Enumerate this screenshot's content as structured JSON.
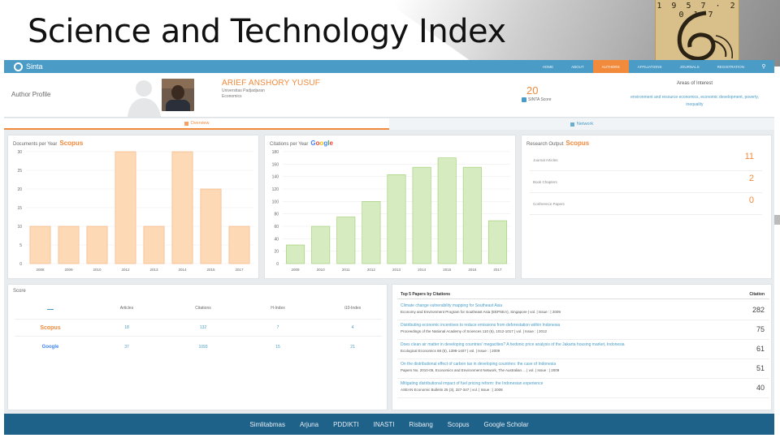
{
  "slide": {
    "title": "Science and Technology Index",
    "logo_years": "1 9 5 7 · 2 0 1 7"
  },
  "app": {
    "brand": "Sinta",
    "nav": [
      {
        "label": "HOME",
        "active": false
      },
      {
        "label": "ABOUT",
        "active": false
      },
      {
        "label": "AUTHORS",
        "active": true
      },
      {
        "label": "AFFILIATIONS",
        "active": false
      },
      {
        "label": "JOURNALS",
        "active": false
      },
      {
        "label": "REGISTRATION",
        "active": false
      }
    ],
    "search_icon": "search-icon"
  },
  "profile": {
    "label": "Author Profile",
    "name": "ARIEF ANSHORY YUSUF",
    "university": "Universitas Padjadjaran",
    "faculty": "Economics",
    "score": "20",
    "score_label": "SINTA Score",
    "interest_title": "Areas of Interest",
    "interests": "environment and resource economics, economic development, poverty, inequality"
  },
  "tabs": [
    {
      "label": "Overview",
      "active": true
    },
    {
      "label": "Network",
      "active": false
    }
  ],
  "scopus_docs": {
    "title": "Documents per Year",
    "brand": "Scopus",
    "chart_data": {
      "type": "bar",
      "categories": [
        "2008",
        "2009",
        "2010",
        "2012",
        "2013",
        "2014",
        "2015",
        "2017"
      ],
      "values": [
        10,
        10,
        10,
        30,
        10,
        30,
        20,
        10
      ],
      "ylim": [
        0,
        30
      ],
      "yticks": [
        0,
        5,
        10,
        15,
        20,
        25,
        30
      ],
      "color": "#fdd9b5",
      "stroke": "#f4b07a"
    }
  },
  "google_cites": {
    "title": "Citations per Year",
    "brand": "Google",
    "chart_data": {
      "type": "bar",
      "categories": [
        "2009",
        "2010",
        "2011",
        "2012",
        "2013",
        "2014",
        "2015",
        "2016",
        "2017"
      ],
      "values": [
        30,
        60,
        75,
        100,
        143,
        155,
        170,
        155,
        69
      ],
      "ylim": [
        0,
        180
      ],
      "yticks": [
        0,
        20,
        40,
        60,
        80,
        100,
        120,
        140,
        160,
        180
      ],
      "color": "#d6ecc0",
      "stroke": "#9ccc6f"
    }
  },
  "research_output": {
    "title": "Research Output",
    "brand": "Scopus",
    "rows": [
      {
        "label": "Journal Articles",
        "value": "11"
      },
      {
        "label": "Book Chapters",
        "value": "2"
      },
      {
        "label": "Conference Papers",
        "value": "0"
      }
    ]
  },
  "score_panel": {
    "title": "Score",
    "columns": [
      "Articles",
      "Citations",
      "H-Index",
      "i10-Index"
    ],
    "rows": [
      {
        "source": "Scopus",
        "values": [
          "18",
          "132",
          "7",
          "4"
        ]
      },
      {
        "source": "Google",
        "values": [
          "37",
          "1093",
          "15",
          "21"
        ]
      }
    ]
  },
  "top5": {
    "title": "Top 5 Papers by Citations",
    "col": "Citation",
    "papers": [
      {
        "title": "Climate change vulnerability mapping for Southeast Asia",
        "source": "Economy and Environment Program for Southeast Asia (EEPSEA), Singapore | vol. | Issue : | 2009",
        "cites": "282"
      },
      {
        "title": "Distributing economic incentives to reduce emissions from deforestation within Indonesia",
        "source": "Proceedings of the National Academy of Sciences 110 (6), 1012-1017 | vol. | Issue : | 2012",
        "cites": "75"
      },
      {
        "title": "Does clean air matter in developing countries' megacities? A hedonic price analysis of the Jakarta housing market, Indonesia",
        "source": "Ecological Economics 68 (5), 1398-1407 | vol. | Issue : | 2009",
        "cites": "61"
      },
      {
        "title": "On the distributional effect of carbon tax in developing countries: the case of Indonesia",
        "source": "Papers No. 2010-05, Economics and Environment Network, The Australian ... | vol. | Issue : | 2009",
        "cites": "51"
      },
      {
        "title": "Mitigating distributional impact of fuel pricing reform: the Indonesian experience",
        "source": "ASEAN Economic Bulletin 25 (3), 327-347 | vol. | Issue : | 2008",
        "cites": "40"
      }
    ]
  },
  "footer": [
    "Simlitabmas",
    "Arjuna",
    "PDDIKTI",
    "INASTI",
    "Risbang",
    "Scopus",
    "Google Scholar"
  ]
}
